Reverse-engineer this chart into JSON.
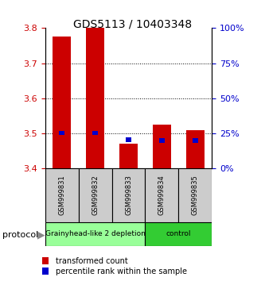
{
  "title": "GDS5113 / 10403348",
  "samples": [
    "GSM999831",
    "GSM999832",
    "GSM999833",
    "GSM999834",
    "GSM999835"
  ],
  "red_bar_bottom": [
    3.4,
    3.4,
    3.4,
    3.4,
    3.4
  ],
  "red_bar_top": [
    3.775,
    3.8,
    3.47,
    3.525,
    3.51
  ],
  "blue_bar_bottom": [
    3.495,
    3.496,
    3.476,
    3.474,
    3.474
  ],
  "blue_bar_top": [
    3.507,
    3.508,
    3.488,
    3.486,
    3.486
  ],
  "ylim_left": [
    3.4,
    3.8
  ],
  "ylim_right": [
    0,
    100
  ],
  "yticks_left": [
    3.4,
    3.5,
    3.6,
    3.7,
    3.8
  ],
  "yticks_right": [
    0,
    25,
    50,
    75,
    100
  ],
  "left_tick_color": "#cc0000",
  "right_tick_color": "#0000cc",
  "groups": [
    {
      "label": "Grainyhead-like 2 depletion",
      "indices": [
        0,
        1,
        2
      ],
      "color": "#99ff99"
    },
    {
      "label": "control",
      "indices": [
        3,
        4
      ],
      "color": "#33cc33"
    }
  ],
  "protocol_label": "protocol",
  "legend_red": "transformed count",
  "legend_blue": "percentile rank within the sample",
  "bar_width": 0.55,
  "blue_bar_width": 0.18,
  "sample_box_color": "#cccccc",
  "background_color": "#ffffff",
  "grid_lines": [
    3.5,
    3.6,
    3.7
  ],
  "title_fontsize": 10,
  "tick_fontsize": 8,
  "sample_fontsize": 6,
  "legend_fontsize": 7
}
